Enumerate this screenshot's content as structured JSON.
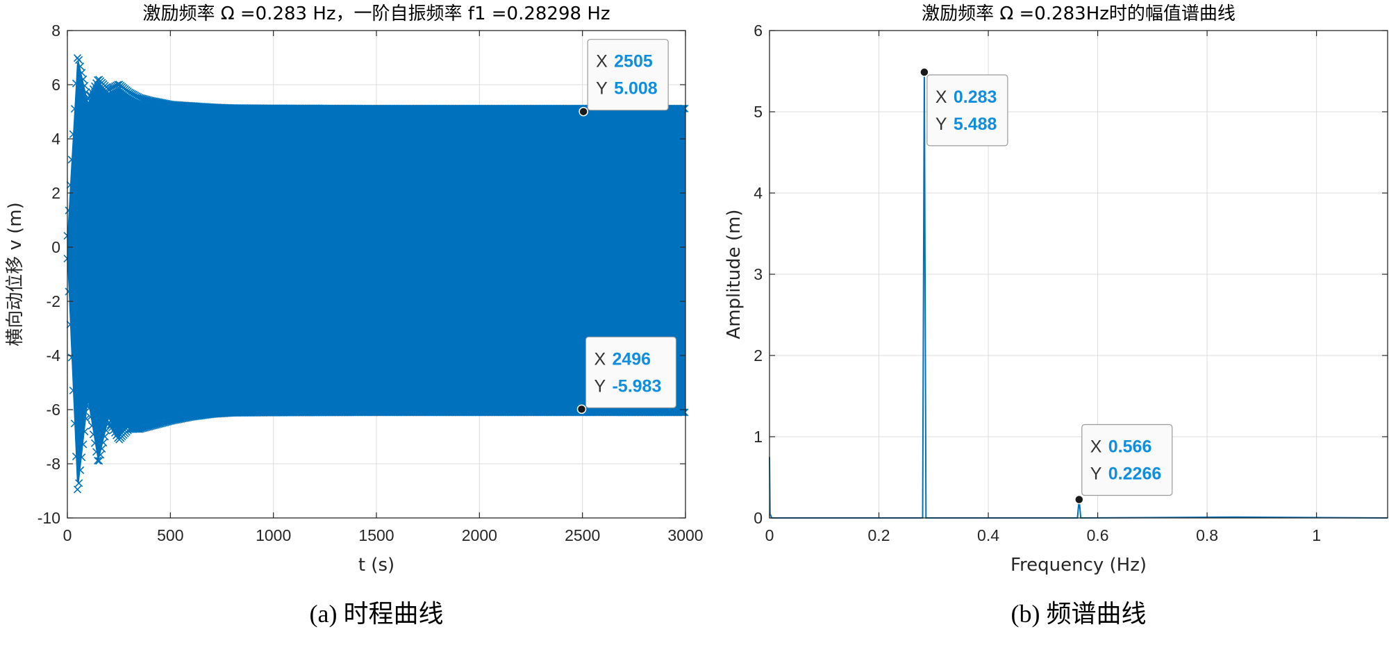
{
  "chart_data": [
    {
      "type": "line",
      "title": "激励频率 Ω =0.283 Hz，一阶自振频率 f1 =0.28298 Hz",
      "xlabel": "t (s)",
      "ylabel": "横向动位移 v (m)",
      "caption": "(a) 时程曲线",
      "xlim": [
        0,
        3000
      ],
      "ylim": [
        -10,
        8
      ],
      "xticks": [
        "0",
        "500",
        "1000",
        "1500",
        "2000",
        "2500",
        "3000"
      ],
      "yticks": [
        "-10",
        "-8",
        "-6",
        "-4",
        "-2",
        "0",
        "2",
        "4",
        "6",
        "8"
      ],
      "grid": true,
      "series_color": "#0072bd",
      "marker": "x",
      "envelope": {
        "t": [
          0,
          50,
          100,
          150,
          200,
          250,
          300,
          350,
          400,
          500,
          600,
          700,
          800,
          1000,
          1500,
          2000,
          2500,
          3000
        ],
        "upper": [
          0.3,
          7.0,
          5.3,
          6.1,
          5.7,
          5.9,
          5.6,
          5.4,
          5.3,
          5.15,
          5.1,
          5.05,
          5.02,
          5.01,
          5.0,
          5.0,
          5.0,
          5.0
        ],
        "lower": [
          -0.3,
          -9.0,
          -5.6,
          -7.9,
          -6.3,
          -7.0,
          -6.6,
          -6.6,
          -6.5,
          -6.3,
          -6.15,
          -6.05,
          -6.0,
          -5.99,
          -5.98,
          -5.98,
          -5.98,
          -5.98
        ]
      },
      "datatips": [
        {
          "x": 2505,
          "y": 5.008,
          "xlabel": "X",
          "ylabel": "Y",
          "xtext": "2505",
          "ytext": "5.008",
          "position": "above"
        },
        {
          "x": 2496,
          "y": -5.983,
          "xlabel": "X",
          "ylabel": "Y",
          "xtext": "2496",
          "ytext": "-5.983",
          "position": "above"
        }
      ]
    },
    {
      "type": "line",
      "title": "激励频率 Ω =0.283Hz时的幅值谱曲线",
      "xlabel": "Frequency (Hz)",
      "ylabel": "Amplitude (m)",
      "caption": "(b) 频谱曲线",
      "xlim": [
        0,
        1.13
      ],
      "ylim": [
        0,
        6
      ],
      "xticks": [
        "0",
        "0.2",
        "0.4",
        "0.6",
        "0.8",
        "1"
      ],
      "yticks": [
        "0",
        "1",
        "2",
        "3",
        "4",
        "5",
        "6"
      ],
      "grid": true,
      "series_color": "#0072bd",
      "spectrum": {
        "x": [
          0,
          0.001,
          0.004,
          0.28,
          0.283,
          0.286,
          0.563,
          0.566,
          0.569,
          0.85,
          1.13
        ],
        "y": [
          0.75,
          0.05,
          0,
          0,
          5.488,
          0,
          0,
          0.2266,
          0,
          0.01,
          0
        ]
      },
      "datatips": [
        {
          "x": 0.283,
          "y": 5.488,
          "xlabel": "X",
          "ylabel": "Y",
          "xtext": "0.283",
          "ytext": "5.488",
          "position": "below-right"
        },
        {
          "x": 0.566,
          "y": 0.2266,
          "xlabel": "X",
          "ylabel": "Y",
          "xtext": "0.566",
          "ytext": "0.2266",
          "position": "above-right"
        }
      ]
    }
  ]
}
